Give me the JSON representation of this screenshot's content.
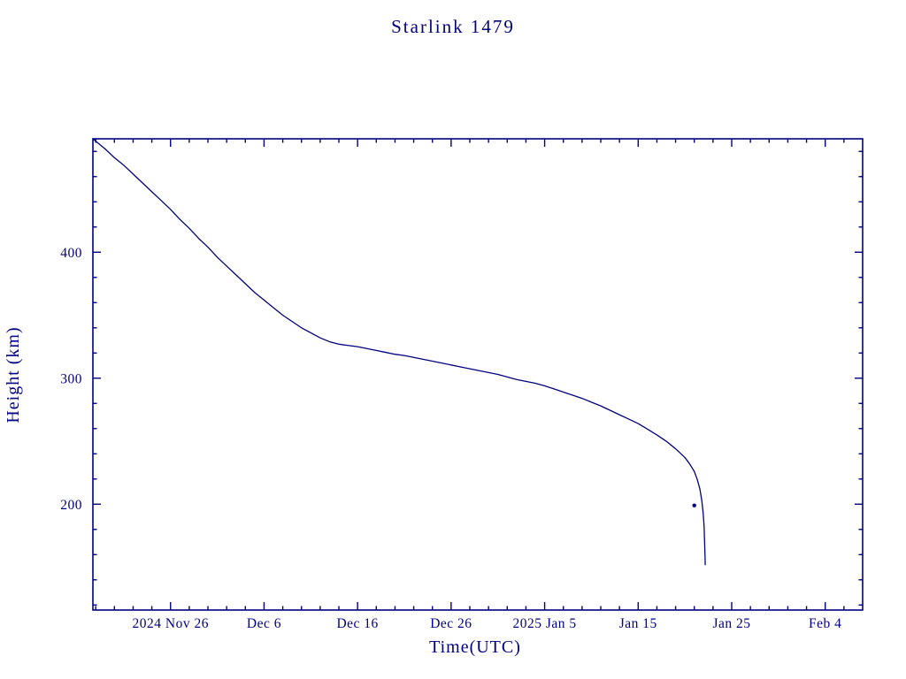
{
  "page": {
    "background_color": "#ffffff"
  },
  "chart_data": {
    "type": "line",
    "title": "Starlink 1479",
    "xlabel": "Time(UTC)",
    "ylabel": "Height (km)",
    "line_color": "#000080",
    "axis_color": "#000080",
    "background": "#ffffff",
    "grid": false,
    "legend": "none",
    "x_unit": "days relative to 2024 Nov 26 00:00 UTC",
    "xlim": [
      -8.3,
      74
    ],
    "ylim": [
      116,
      490
    ],
    "x_ticks": [
      {
        "value": 0,
        "label": "2024 Nov 26"
      },
      {
        "value": 10,
        "label": "Dec 6"
      },
      {
        "value": 20,
        "label": "Dec 16"
      },
      {
        "value": 30,
        "label": "Dec 26"
      },
      {
        "value": 40,
        "label": "2025 Jan 5"
      },
      {
        "value": 50,
        "label": "Jan 15"
      },
      {
        "value": 60,
        "label": "Jan 25"
      },
      {
        "value": 70,
        "label": "Feb 4"
      }
    ],
    "x_minor_step": 2,
    "y_ticks": [
      {
        "value": 200,
        "label": "200"
      },
      {
        "value": 300,
        "label": "300"
      },
      {
        "value": 400,
        "label": "400"
      }
    ],
    "y_minor_step": 20,
    "series": [
      {
        "name": "height",
        "points": [
          [
            -8.3,
            490
          ],
          [
            -7,
            482
          ],
          [
            -6,
            475
          ],
          [
            -5,
            469
          ],
          [
            -4,
            462
          ],
          [
            -3,
            455
          ],
          [
            -2,
            448
          ],
          [
            -1,
            441
          ],
          [
            0,
            434
          ],
          [
            1,
            426
          ],
          [
            2,
            419
          ],
          [
            3,
            411
          ],
          [
            4,
            404
          ],
          [
            5,
            396
          ],
          [
            6,
            389
          ],
          [
            7,
            382
          ],
          [
            8,
            375
          ],
          [
            9,
            368
          ],
          [
            10,
            362
          ],
          [
            11,
            356
          ],
          [
            12,
            350
          ],
          [
            13,
            345
          ],
          [
            14,
            340
          ],
          [
            15,
            336
          ],
          [
            16,
            332
          ],
          [
            17,
            329
          ],
          [
            18,
            327
          ],
          [
            19,
            326
          ],
          [
            20,
            325
          ],
          [
            21,
            323.5
          ],
          [
            22,
            322
          ],
          [
            23,
            320.5
          ],
          [
            24,
            319
          ],
          [
            25,
            318
          ],
          [
            26,
            316.5
          ],
          [
            27,
            315
          ],
          [
            28,
            313.5
          ],
          [
            29,
            312
          ],
          [
            30,
            310.5
          ],
          [
            31,
            309
          ],
          [
            32,
            307.5
          ],
          [
            33,
            306
          ],
          [
            34,
            304.5
          ],
          [
            35,
            303
          ],
          [
            36,
            301
          ],
          [
            37,
            299
          ],
          [
            38,
            297.5
          ],
          [
            39,
            296
          ],
          [
            40,
            294
          ],
          [
            41,
            291.5
          ],
          [
            42,
            289
          ],
          [
            43,
            286.5
          ],
          [
            44,
            284
          ],
          [
            45,
            281
          ],
          [
            46,
            278
          ],
          [
            47,
            274.5
          ],
          [
            48,
            271
          ],
          [
            49,
            267.5
          ],
          [
            50,
            264
          ],
          [
            51,
            259.5
          ],
          [
            52,
            255
          ],
          [
            53,
            250
          ],
          [
            54,
            244
          ],
          [
            55,
            237
          ],
          [
            55.5,
            232
          ],
          [
            56,
            226
          ],
          [
            56.3,
            220
          ],
          [
            56.6,
            212
          ],
          [
            56.8,
            203
          ],
          [
            56.95,
            193
          ],
          [
            57.05,
            182
          ],
          [
            57.1,
            170
          ],
          [
            57.15,
            158
          ],
          [
            57.17,
            152
          ]
        ]
      }
    ],
    "isolated_point": {
      "x": 56.0,
      "y": 199
    }
  }
}
